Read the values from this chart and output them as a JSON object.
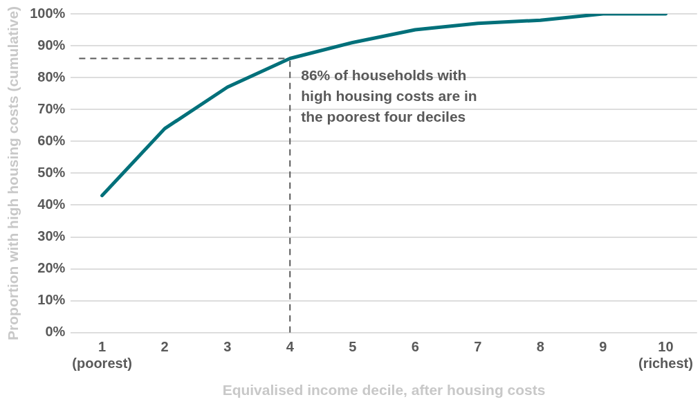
{
  "chart_data": {
    "type": "line",
    "xlabel": "Equivalised income decile, after housing costs",
    "ylabel": "Proportion with high housing costs (cumulative)",
    "categories": [
      "1\n(poorest)",
      "2",
      "3",
      "4",
      "5",
      "6",
      "7",
      "8",
      "9",
      "10\n(richest)"
    ],
    "series": [
      {
        "color": "#00707a",
        "values": [
          43,
          64,
          77,
          86,
          91,
          95,
          97,
          98,
          100,
          100
        ]
      }
    ],
    "ylim": [
      0,
      100
    ],
    "yticks": [
      {
        "value": 0,
        "label": "0%"
      },
      {
        "value": 10,
        "label": "10%"
      },
      {
        "value": 20,
        "label": "20%"
      },
      {
        "value": 30,
        "label": "30%"
      },
      {
        "value": 40,
        "label": "40%"
      },
      {
        "value": 50,
        "label": "50%"
      },
      {
        "value": 60,
        "label": "60%"
      },
      {
        "value": 70,
        "label": "70%"
      },
      {
        "value": 80,
        "label": "80%"
      },
      {
        "value": 90,
        "label": "90%"
      },
      {
        "value": 100,
        "label": "100%"
      }
    ],
    "grid": "y",
    "legend": false,
    "marker": "none",
    "line_style": "solid",
    "ref_lines": [
      {
        "axis": "y",
        "value": 86,
        "color": "#595959",
        "line_style": "dashed"
      },
      {
        "axis": "x",
        "value": "4",
        "color": "#595959",
        "line_style": "dashed"
      }
    ],
    "annotations": [
      {
        "text": "86% of households with\nhigh housing costs are in\nthe poorest four deciles",
        "x": "4",
        "y": 86
      }
    ]
  }
}
